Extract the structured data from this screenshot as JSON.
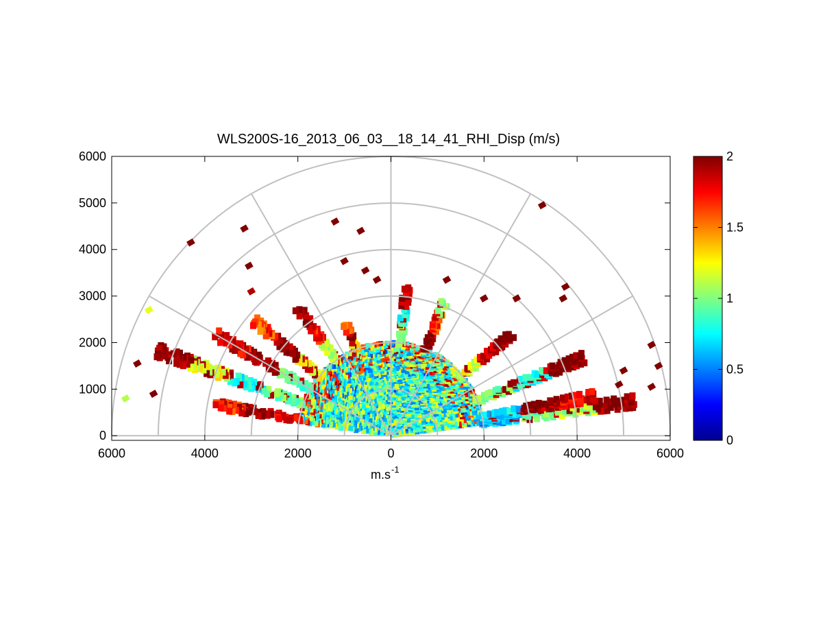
{
  "chart_data": {
    "type": "heatmap",
    "subtype": "polar-rhi-scan",
    "title": "WLS200S-16_2013_06_03__18_14_41_RHI_Disp (m/s)",
    "xlabel": "m.s",
    "xlabel_superscript": "-1",
    "ylabel": "",
    "xlim": [
      -6000,
      6000
    ],
    "ylim": [
      -100,
      6000
    ],
    "x_tick_values": [
      -6000,
      -4000,
      -2000,
      0,
      2000,
      4000,
      6000
    ],
    "x_tick_labels": [
      "6000",
      "4000",
      "2000",
      "0",
      "2000",
      "4000",
      "6000"
    ],
    "y_tick_values": [
      0,
      1000,
      2000,
      3000,
      4000,
      5000,
      6000
    ],
    "y_tick_labels": [
      "0",
      "1000",
      "2000",
      "3000",
      "4000",
      "5000",
      "6000"
    ],
    "polar_grid": {
      "ring_ranges": [
        1000,
        2000,
        3000,
        4000,
        5000,
        6000
      ],
      "spoke_angles_deg": [
        0,
        30,
        60,
        90,
        120,
        150,
        180
      ]
    },
    "colorbar": {
      "colormap": "jet",
      "min": 0,
      "max": 2,
      "tick_values": [
        0,
        0.5,
        1,
        1.5,
        2
      ],
      "tick_labels": [
        "0",
        "0.5",
        "1",
        "1.5",
        "2"
      ]
    },
    "dense_region": {
      "description": "Dense returns near radar, mostly 0.7-1.2 m/s",
      "max_range_m": 2000,
      "angle_range_deg": [
        8,
        172
      ],
      "value_range": [
        0.5,
        1.3
      ]
    },
    "scan_rays": [
      {
        "angle_deg": 8,
        "range_m": [
          2000,
          5300
        ],
        "values": [
          0.6,
          1.0,
          1.1,
          2.0
        ]
      },
      {
        "angle_deg": 11,
        "range_m": [
          2000,
          4500
        ],
        "values": [
          0.7,
          2.0,
          1.8
        ]
      },
      {
        "angle_deg": 22,
        "range_m": [
          2000,
          4500
        ],
        "values": [
          1.0,
          0.8,
          2.0
        ]
      },
      {
        "angle_deg": 40,
        "range_m": [
          2000,
          3400
        ],
        "values": [
          1.2,
          1.8,
          2.0
        ]
      },
      {
        "angle_deg": 68,
        "range_m": [
          2000,
          3100
        ],
        "values": [
          2.0,
          1.6,
          1.0
        ]
      },
      {
        "angle_deg": 84,
        "range_m": [
          2000,
          3200
        ],
        "values": [
          1.0,
          0.8,
          1.9
        ]
      },
      {
        "angle_deg": 112,
        "range_m": [
          2000,
          2600
        ],
        "values": [
          1.3,
          2.0,
          1.6
        ]
      },
      {
        "angle_deg": 126,
        "range_m": [
          2000,
          3400
        ],
        "values": [
          1.1,
          1.7,
          2.0
        ]
      },
      {
        "angle_deg": 140,
        "range_m": [
          2000,
          3800
        ],
        "values": [
          1.2,
          2.0,
          1.6
        ]
      },
      {
        "angle_deg": 150,
        "range_m": [
          2000,
          4400
        ],
        "values": [
          0.9,
          2.0,
          1.8
        ]
      },
      {
        "angle_deg": 160,
        "range_m": [
          2000,
          5400
        ],
        "values": [
          1.0,
          0.8,
          1.2,
          2.0
        ]
      },
      {
        "angle_deg": 170,
        "range_m": [
          2000,
          3800
        ],
        "values": [
          1.8,
          2.0,
          1.6
        ]
      }
    ],
    "outliers": [
      {
        "x": -4300,
        "y": 4150,
        "value": 2.0
      },
      {
        "x": -3150,
        "y": 4450,
        "value": 2.0
      },
      {
        "x": -1200,
        "y": 4600,
        "value": 2.0
      },
      {
        "x": -650,
        "y": 4400,
        "value": 2.0
      },
      {
        "x": -3050,
        "y": 3650,
        "value": 2.0
      },
      {
        "x": -3000,
        "y": 3100,
        "value": 1.9
      },
      {
        "x": -1000,
        "y": 3750,
        "value": 2.0
      },
      {
        "x": -550,
        "y": 3550,
        "value": 2.0
      },
      {
        "x": -300,
        "y": 3350,
        "value": 2.0
      },
      {
        "x": 1200,
        "y": 3350,
        "value": 2.0
      },
      {
        "x": 3250,
        "y": 4950,
        "value": 2.0
      },
      {
        "x": 3750,
        "y": 3200,
        "value": 2.0
      },
      {
        "x": 3700,
        "y": 2950,
        "value": 2.0
      },
      {
        "x": 2700,
        "y": 2950,
        "value": 2.0
      },
      {
        "x": 2000,
        "y": 2950,
        "value": 2.0
      },
      {
        "x": -5200,
        "y": 2700,
        "value": 1.2
      },
      {
        "x": -5450,
        "y": 1550,
        "value": 2.0
      },
      {
        "x": -5700,
        "y": 800,
        "value": 1.1
      },
      {
        "x": -5100,
        "y": 900,
        "value": 2.0
      },
      {
        "x": 5600,
        "y": 1950,
        "value": 2.0
      },
      {
        "x": 5750,
        "y": 1500,
        "value": 2.0
      },
      {
        "x": 5600,
        "y": 1050,
        "value": 2.0
      },
      {
        "x": 5000,
        "y": 1400,
        "value": 2.0
      },
      {
        "x": 4900,
        "y": 1100,
        "value": 2.0
      }
    ]
  }
}
